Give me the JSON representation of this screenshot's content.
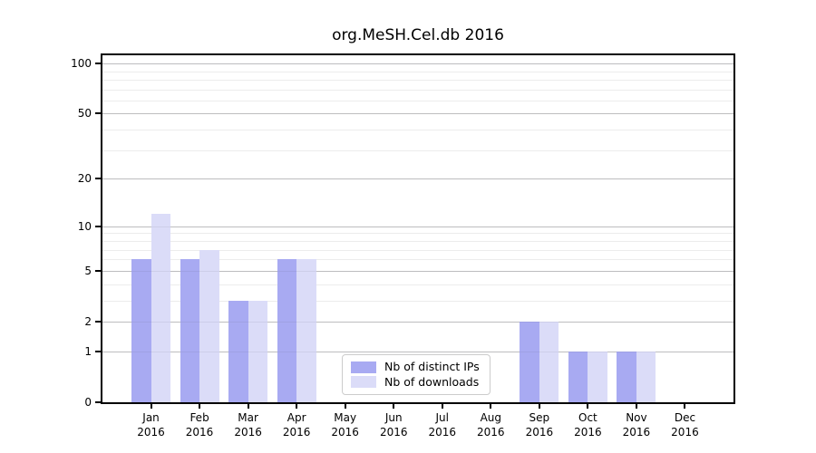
{
  "chart_data": {
    "type": "bar",
    "title": "org.MeSH.Cel.db 2016",
    "year_label": "2016",
    "months": [
      "Jan",
      "Feb",
      "Mar",
      "Apr",
      "May",
      "Jun",
      "Jul",
      "Aug",
      "Sep",
      "Oct",
      "Nov",
      "Dec"
    ],
    "series": [
      {
        "name": "Nb of distinct IPs",
        "color": "#a8aaf2",
        "values": [
          6,
          6,
          3,
          6,
          0,
          0,
          0,
          0,
          2,
          1,
          1,
          0
        ]
      },
      {
        "name": "Nb of downloads",
        "color": "#dbdcf8",
        "values": [
          12,
          7,
          3,
          6,
          0,
          0,
          0,
          0,
          2,
          1,
          1,
          0
        ]
      }
    ],
    "y_scale": "log1p",
    "y_ticks": [
      0,
      1,
      2,
      5,
      10,
      20,
      50,
      100
    ],
    "y_minor_gridlines": [
      3,
      4,
      6,
      7,
      8,
      9,
      30,
      40,
      60,
      70,
      80,
      90
    ],
    "y_max": 112,
    "grid": true,
    "legend_position": "lower center",
    "xlabel": "",
    "ylabel": ""
  },
  "colors": {
    "major_grid": "#c9c9c9",
    "minor_grid": "#ececec",
    "spine": "#000000",
    "legend_border": "#cccccc",
    "text": "#000000"
  }
}
